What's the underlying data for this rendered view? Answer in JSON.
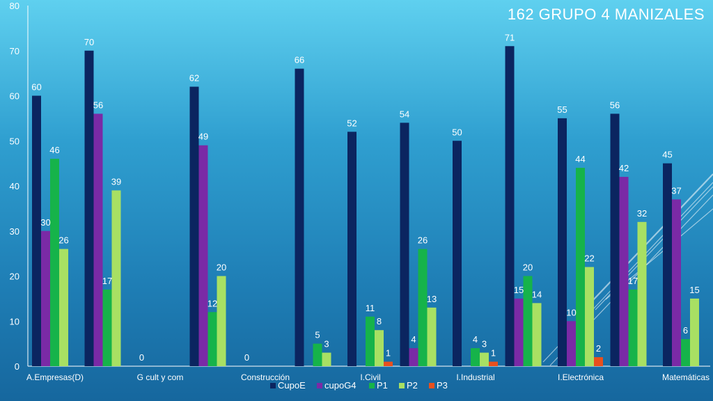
{
  "chart_data": {
    "type": "bar",
    "title": "162  GRUPO 4  MANIZALES",
    "ylim": [
      0,
      80
    ],
    "yticks": [
      0,
      10,
      20,
      30,
      40,
      50,
      60,
      70,
      80
    ],
    "grid": false,
    "legend_position": "bottom",
    "categories": [
      "A.Empresas(D)",
      "",
      "G cult y com",
      "",
      "Construcción",
      "",
      "I.Civil",
      "",
      "I.Industrial",
      "",
      "I.Electrónica",
      "",
      "Matemáticas"
    ],
    "series": [
      {
        "name": "CupoE",
        "color": "#0b2560",
        "values": [
          60,
          70,
          0,
          62,
          0,
          66,
          52,
          54,
          50,
          71,
          55,
          56,
          45
        ]
      },
      {
        "name": "cupoG4",
        "color": "#7a2aa6",
        "values": [
          30,
          56,
          null,
          49,
          null,
          null,
          null,
          4,
          null,
          15,
          10,
          42,
          37
        ]
      },
      {
        "name": "P1",
        "color": "#16b34a",
        "values": [
          46,
          17,
          null,
          12,
          null,
          5,
          11,
          26,
          4,
          20,
          44,
          17,
          6
        ]
      },
      {
        "name": "P2",
        "color": "#a8e063",
        "values": [
          26,
          39,
          null,
          20,
          null,
          3,
          8,
          13,
          3,
          14,
          22,
          32,
          15
        ]
      },
      {
        "name": "P3",
        "color": "#e8501e",
        "values": [
          null,
          null,
          null,
          null,
          null,
          null,
          1,
          null,
          1,
          null,
          2,
          null,
          null
        ]
      }
    ]
  }
}
